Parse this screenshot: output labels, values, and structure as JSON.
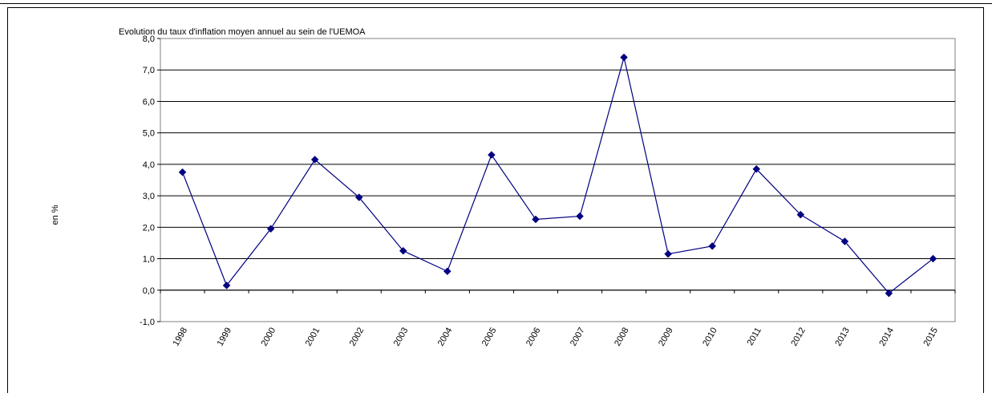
{
  "chart_data": {
    "type": "line",
    "title": "Evolution du taux d'inflation moyen annuel au sein de l'UEMOA",
    "xlabel": "",
    "ylabel": "en %",
    "categories": [
      "1998",
      "1999",
      "2000",
      "2001",
      "2002",
      "2003",
      "2004",
      "2005",
      "2006",
      "2007",
      "2008",
      "2009",
      "2010",
      "2011",
      "2012",
      "2013",
      "2014",
      "2015"
    ],
    "series": [
      {
        "name": "",
        "values": [
          3.75,
          0.15,
          1.95,
          4.15,
          2.95,
          1.25,
          0.6,
          4.3,
          2.25,
          2.35,
          7.4,
          1.15,
          1.4,
          3.85,
          2.4,
          1.55,
          -0.1,
          1.0
        ]
      }
    ],
    "ylim": [
      -1,
      8
    ],
    "ytick_step": 1,
    "ytick_labels": [
      "-1,0",
      "0,0",
      "1,0",
      "2,0",
      "3,0",
      "4,0",
      "5,0",
      "6,0",
      "7,0",
      "8,0"
    ],
    "grid": true,
    "legend": "none",
    "colors": {
      "line": "#000080",
      "marker": "#000080",
      "grid": "#000000",
      "plot_border": "#808080"
    }
  }
}
